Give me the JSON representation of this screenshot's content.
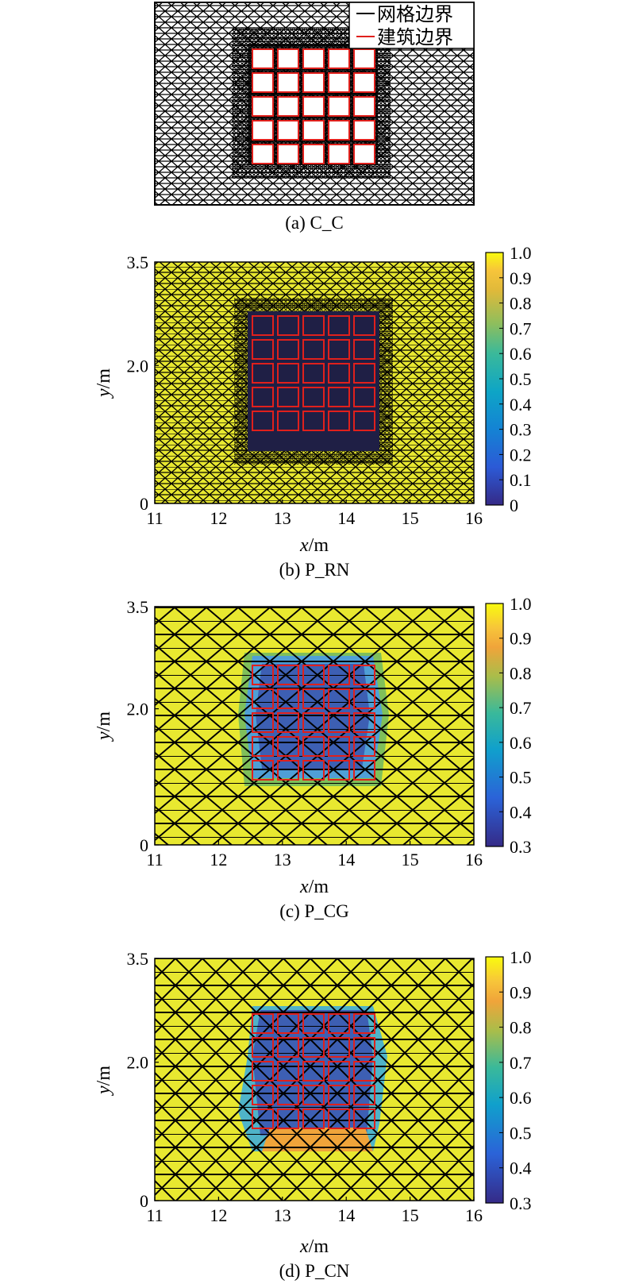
{
  "legend": {
    "mesh": "网格边界",
    "building": "建筑边界"
  },
  "colors": {
    "mesh": "#000000",
    "building": "#e0201c",
    "background": "#e8e830",
    "low": "#3d3d9a",
    "mid": "#4f9fd6",
    "green": "#7fbf5a"
  },
  "chart_data": [
    {
      "type": "mesh",
      "caption": "(a) C_C",
      "buildings": {
        "rows": 5,
        "cols": 5
      }
    },
    {
      "type": "heatmap",
      "caption": "(b) P_RN",
      "xlabel_var": "x",
      "xlabel_unit": "/m",
      "ylabel_var": "y",
      "ylabel_unit": "/m",
      "xlim": [
        11,
        16
      ],
      "ylim": [
        0,
        3.5
      ],
      "xticks": [
        "11",
        "12",
        "13",
        "14",
        "15",
        "16"
      ],
      "yticks": [
        "0",
        "2.0",
        "3.5"
      ],
      "colorbar": {
        "min": 0,
        "max": 1,
        "ticks": [
          "0",
          "0.1",
          "0.2",
          "0.3",
          "0.4",
          "0.5",
          "0.6",
          "0.7",
          "0.8",
          "0.9",
          "1.0"
        ]
      }
    },
    {
      "type": "heatmap",
      "caption": "(c) P_CG",
      "xlabel_var": "x",
      "xlabel_unit": "/m",
      "ylabel_var": "y",
      "ylabel_unit": "/m",
      "xlim": [
        11,
        16
      ],
      "ylim": [
        0,
        3.5
      ],
      "xticks": [
        "11",
        "12",
        "13",
        "14",
        "15",
        "16"
      ],
      "yticks": [
        "0",
        "2.0",
        "3.5"
      ],
      "colorbar": {
        "min": 0.3,
        "max": 1,
        "ticks": [
          "0.3",
          "0.4",
          "0.5",
          "0.6",
          "0.7",
          "0.8",
          "0.9",
          "1.0"
        ]
      }
    },
    {
      "type": "heatmap",
      "caption": "(d) P_CN",
      "xlabel_var": "x",
      "xlabel_unit": "/m",
      "ylabel_var": "y",
      "ylabel_unit": "/m",
      "xlim": [
        11,
        16
      ],
      "ylim": [
        0,
        3.5
      ],
      "xticks": [
        "11",
        "12",
        "13",
        "14",
        "15",
        "16"
      ],
      "yticks": [
        "0",
        "2.0",
        "3.5"
      ],
      "colorbar": {
        "min": 0.3,
        "max": 1,
        "ticks": [
          "0.3",
          "0.4",
          "0.5",
          "0.6",
          "0.7",
          "0.8",
          "0.9",
          "1.0"
        ]
      }
    }
  ]
}
